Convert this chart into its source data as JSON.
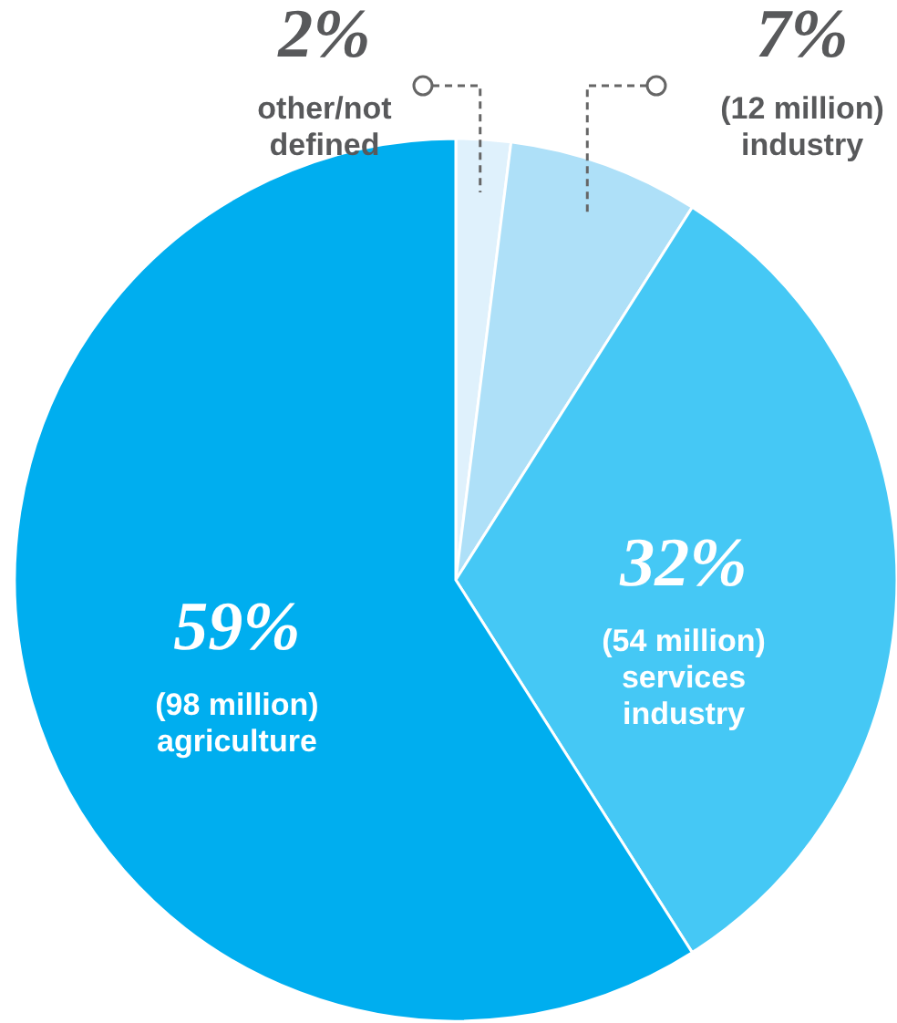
{
  "chart_data": {
    "type": "pie",
    "categories": [
      "other/not defined",
      "(12 million) industry",
      "(54 million) services industry",
      "(98 million) agriculture"
    ],
    "values": [
      2,
      7,
      32,
      59
    ],
    "colors": [
      "#dff1fc",
      "#aee0f8",
      "#45c8f5",
      "#00aeef"
    ],
    "value_labels": [
      "2%",
      "7%",
      "32%",
      "59%"
    ]
  }
}
